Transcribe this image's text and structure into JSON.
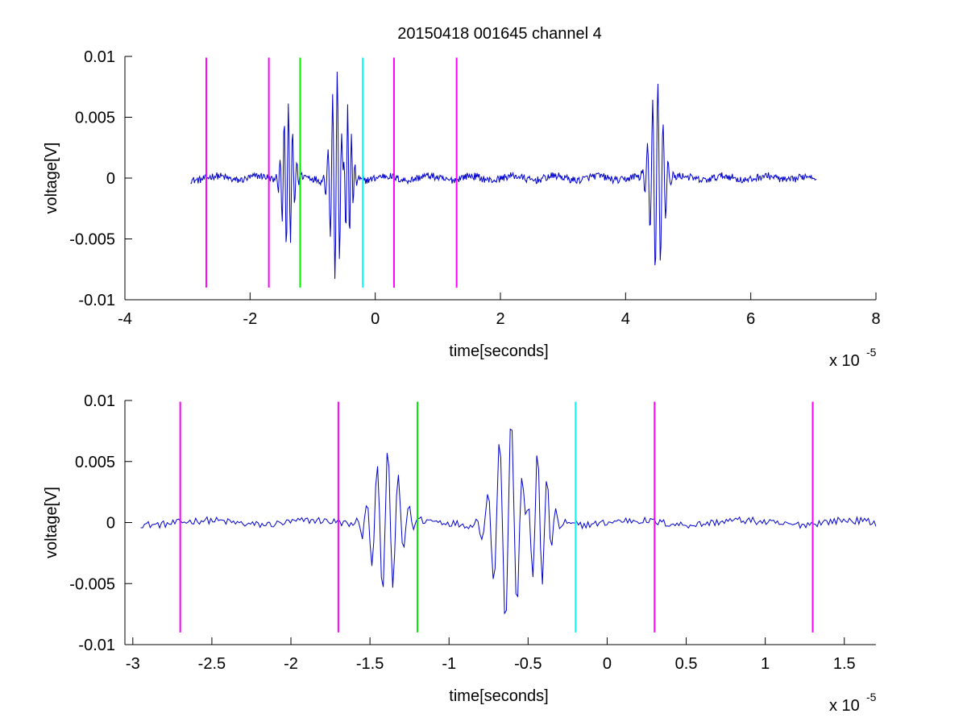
{
  "figure": {
    "title": "20150418 001645 channel 4"
  },
  "colors": {
    "signal": "#0000cc",
    "magenta": "#ff00ff",
    "green": "#00ee00",
    "cyan": "#00ffff",
    "axes": "#000000"
  },
  "chart_data": [
    {
      "type": "line",
      "title": "20150418 001645 channel 4",
      "xlabel": "time[seconds]",
      "ylabel": "voltage[V]",
      "x_multiplier_base": "x 10",
      "x_multiplier_exp": "-5",
      "xlim": [
        -4,
        8
      ],
      "ylim": [
        -0.01,
        0.01
      ],
      "x_scale": 1e-05,
      "xticks": [
        -4,
        -2,
        0,
        2,
        4,
        6,
        8
      ],
      "xtick_labels": [
        "-4",
        "-2",
        "0",
        "2",
        "4",
        "6",
        "8"
      ],
      "yticks": [
        -0.01,
        -0.005,
        0,
        0.005,
        0.01
      ],
      "ytick_labels": [
        "-0.01",
        "-0.005",
        "0",
        "0.005",
        "0.01"
      ],
      "grid": false,
      "series": [
        {
          "color": "#0000cc",
          "x_range": [
            -2.95,
            7.05
          ],
          "baseline_noise": 0.0003,
          "pulses": [
            {
              "t": -1.4,
              "amp": 0.0062,
              "width": 0.08
            },
            {
              "t": -0.62,
              "amp": 0.0085,
              "width": 0.09
            },
            {
              "t": -0.45,
              "amp": 0.0055,
              "width": 0.07
            },
            {
              "t": 4.5,
              "amp": 0.008,
              "width": 0.1
            }
          ]
        }
      ],
      "markers": [
        {
          "x": -2.7,
          "color": "#ff00ff",
          "y_range": [
            -0.009,
            0.0099
          ]
        },
        {
          "x": -1.7,
          "color": "#ff00ff",
          "y_range": [
            -0.009,
            0.0099
          ]
        },
        {
          "x": -1.2,
          "color": "#00ee00",
          "y_range": [
            -0.009,
            0.0099
          ]
        },
        {
          "x": -0.2,
          "color": "#00ffff",
          "y_range": [
            -0.009,
            0.0099
          ]
        },
        {
          "x": 0.3,
          "color": "#ff00ff",
          "y_range": [
            -0.009,
            0.0099
          ]
        },
        {
          "x": 1.3,
          "color": "#ff00ff",
          "y_range": [
            -0.009,
            0.0099
          ]
        }
      ]
    },
    {
      "type": "line",
      "title": "",
      "xlabel": "time[seconds]",
      "ylabel": "voltage[V]",
      "x_multiplier_base": "x 10",
      "x_multiplier_exp": "-5",
      "xlim": [
        -3.05,
        1.7
      ],
      "ylim": [
        -0.01,
        0.01
      ],
      "x_scale": 1e-05,
      "xticks": [
        -3,
        -2.5,
        -2,
        -1.5,
        -1,
        -0.5,
        0,
        0.5,
        1,
        1.5
      ],
      "xtick_labels": [
        "-3",
        "-2.5",
        "-2",
        "-1.5",
        "-1",
        "-0.5",
        "0",
        "0.5",
        "1",
        "1.5"
      ],
      "yticks": [
        -0.01,
        -0.005,
        0,
        0.005,
        0.01
      ],
      "ytick_labels": [
        "-0.01",
        "-0.005",
        "0",
        "0.005",
        "0.01"
      ],
      "grid": false,
      "series": [
        {
          "color": "#0000cc",
          "x_range": [
            -2.95,
            1.7
          ],
          "baseline_noise": 0.0003,
          "pulses": [
            {
              "t": -1.4,
              "amp": 0.0062,
              "width": 0.08
            },
            {
              "t": -0.62,
              "amp": 0.0085,
              "width": 0.09
            },
            {
              "t": -0.45,
              "amp": 0.0055,
              "width": 0.07
            }
          ]
        }
      ],
      "markers": [
        {
          "x": -2.7,
          "color": "#ff00ff",
          "y_range": [
            -0.009,
            0.0099
          ]
        },
        {
          "x": -1.7,
          "color": "#ff00ff",
          "y_range": [
            -0.009,
            0.0099
          ]
        },
        {
          "x": -1.2,
          "color": "#00ee00",
          "y_range": [
            -0.009,
            0.0099
          ]
        },
        {
          "x": -0.2,
          "color": "#00ffff",
          "y_range": [
            -0.009,
            0.0099
          ]
        },
        {
          "x": 0.3,
          "color": "#ff00ff",
          "y_range": [
            -0.009,
            0.0099
          ]
        },
        {
          "x": 1.3,
          "color": "#ff00ff",
          "y_range": [
            -0.009,
            0.0099
          ]
        }
      ]
    }
  ]
}
